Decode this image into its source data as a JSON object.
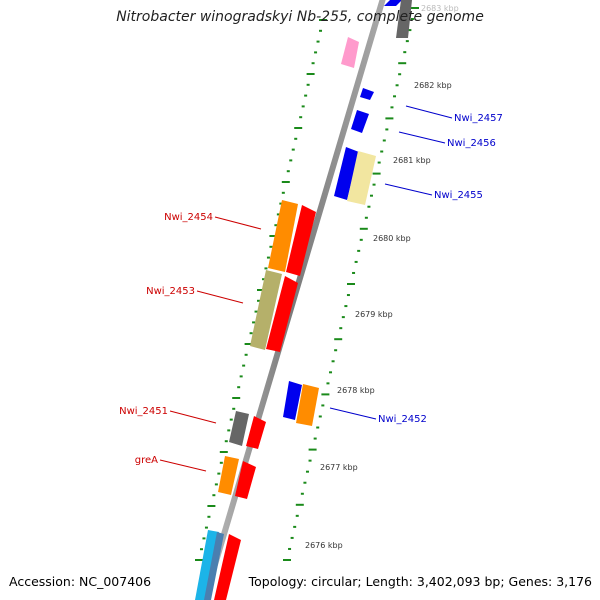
{
  "title": "Nitrobacter winogradskyi Nb-255, complete genome",
  "footer": {
    "accession": "Accession: NC_007406",
    "topology": "Topology: circular; Length: 3,402,093 bp; Genes: 3,176"
  },
  "kbp_labels": [
    "2683 kbp",
    "2682 kbp",
    "2681 kbp",
    "2680 kbp",
    "2679 kbp",
    "2678 kbp",
    "2677 kbp",
    "2676 kbp"
  ],
  "gene_labels": [
    {
      "text": "Nwi_2457",
      "color": "#0000cc"
    },
    {
      "text": "Nwi_2456",
      "color": "#0000cc"
    },
    {
      "text": "Nwi_2455",
      "color": "#0000cc"
    },
    {
      "text": "Nwi_2454",
      "color": "#cc0000"
    },
    {
      "text": "Nwi_2453",
      "color": "#cc0000"
    },
    {
      "text": "Nwi_2451",
      "color": "#cc0000"
    },
    {
      "text": "greA",
      "color": "#cc0000"
    },
    {
      "text": "Nwi_2452",
      "color": "#0000cc"
    }
  ],
  "colors": {
    "backbone": "#8c8c8c",
    "tick": "#1a8a1a",
    "forward_label": "#0000cc",
    "reverse_label": "#cc0000",
    "red_gene": "#ff0000",
    "blue_gene": "#0000ee",
    "orange_gene": "#ff8c00",
    "olive_gene": "#b5b06a",
    "yellow_gene": "#f2e6a0",
    "grey_gene": "#666666",
    "pink_gene": "#ff9acc",
    "cyan_gene": "#1cb4e8"
  }
}
